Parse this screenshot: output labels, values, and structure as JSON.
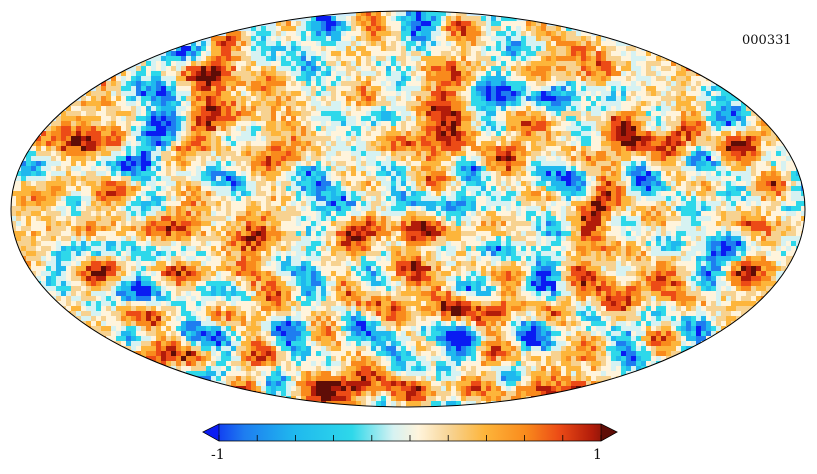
{
  "map": {
    "id_label": "000331",
    "projection": "mollweide",
    "field_kind": "random temperature-like anisotropy field"
  },
  "colorbar": {
    "min_label": "-1",
    "max_label": "1",
    "ticks": 11,
    "colors": [
      "#0a1cf2",
      "#1e7df0",
      "#1fb8ee",
      "#2ed8ea",
      "#d6f2f2",
      "#fff4dc",
      "#f7d290",
      "#fdb53b",
      "#f98a1c",
      "#ec4b16",
      "#b21c0a",
      "#5f0d07"
    ]
  }
}
